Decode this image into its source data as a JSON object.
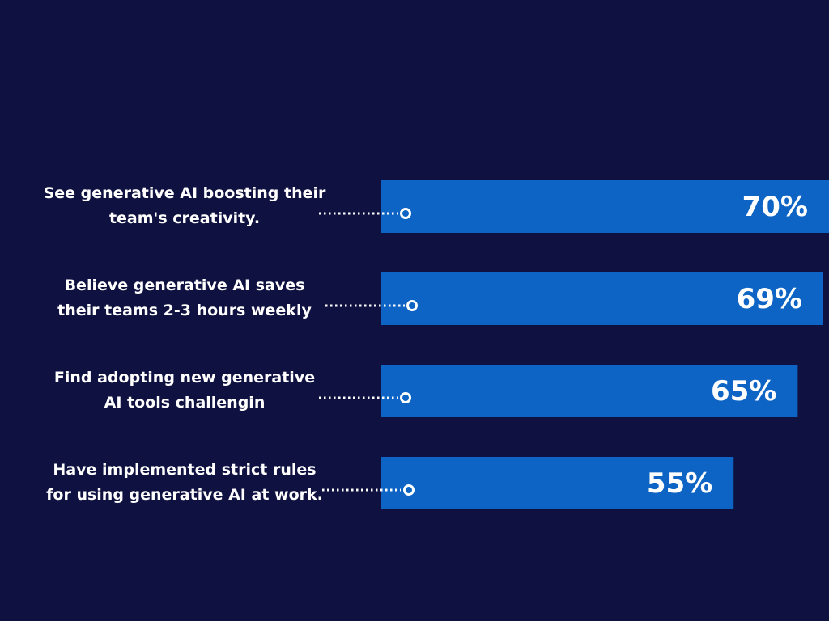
{
  "chart_data": {
    "type": "bar",
    "orientation": "horizontal",
    "categories": [
      [
        "See generative AI boosting their",
        "team's creativity."
      ],
      [
        "Believe generative AI saves",
        "their teams 2-3 hours weekly"
      ],
      [
        "Find adopting new generative",
        "AI tools challengin"
      ],
      [
        "Have implemented strict rules",
        "for using generative AI at work."
      ]
    ],
    "values": [
      70,
      69,
      65,
      55
    ],
    "value_labels": [
      "70%",
      "69%",
      "65%",
      "55%"
    ],
    "unit": "%",
    "grid": false,
    "legend": "none"
  },
  "colors": {
    "background": "#0f1140",
    "bar": "#0d64c4",
    "text": "#ffffff",
    "connector": "#ffffff"
  }
}
